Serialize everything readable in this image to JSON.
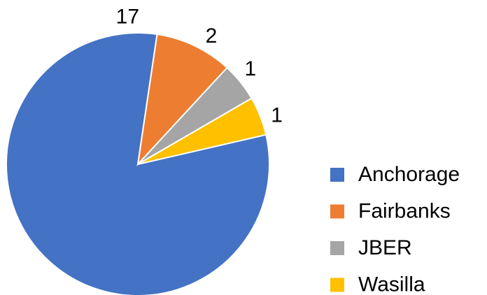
{
  "chart_data": {
    "type": "pie",
    "categories": [
      "Anchorage",
      "Fairbanks",
      "JBER",
      "Wasilla"
    ],
    "values": [
      17,
      2,
      1,
      1
    ],
    "colors": [
      "#4472c4",
      "#ed7d31",
      "#a5a5a5",
      "#ffc000"
    ],
    "legend": "right"
  }
}
